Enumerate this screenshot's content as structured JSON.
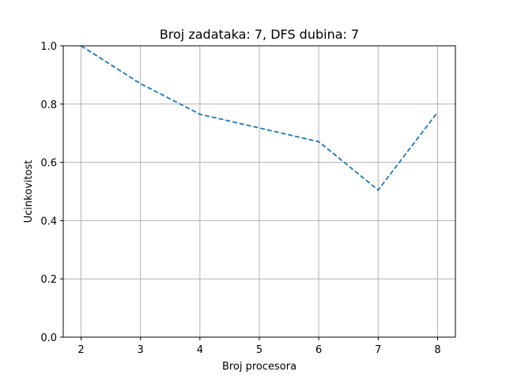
{
  "chart_data": {
    "type": "line",
    "title": "Broj zadataka: 7, DFS dubina: 7",
    "xlabel": "Broj procesora",
    "ylabel": "Ucinkovitost",
    "x": [
      2,
      3,
      4,
      5,
      6,
      7,
      8
    ],
    "xlim": [
      1.7,
      8.3
    ],
    "ylim": [
      0.0,
      1.0
    ],
    "xticks": [
      2,
      3,
      4,
      5,
      6,
      7,
      8
    ],
    "yticks": [
      0.0,
      0.2,
      0.4,
      0.6,
      0.8,
      1.0
    ],
    "ytick_labels": [
      "0.0",
      "0.2",
      "0.4",
      "0.6",
      "0.8",
      "1.0"
    ],
    "grid": true,
    "series": [
      {
        "values": [
          1.0,
          0.87,
          0.765,
          0.718,
          0.671,
          0.505,
          0.772
        ],
        "color": "#1f77b4",
        "linestyle": "dashed"
      }
    ]
  }
}
